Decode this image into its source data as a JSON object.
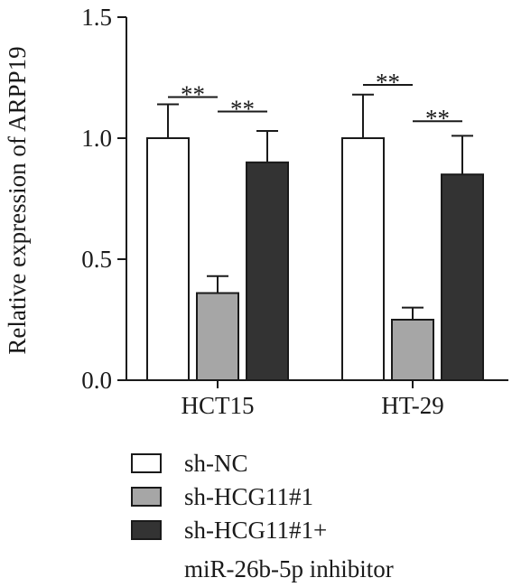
{
  "chart_data": {
    "type": "bar",
    "title": "",
    "xlabel": "",
    "ylabel": "Relative expression of ARPP19",
    "ylim": [
      0,
      1.5
    ],
    "yticks": [
      0,
      0.5,
      1.0,
      1.5
    ],
    "ytick_labels": [
      "0.0",
      "0.5",
      "1.0",
      "1.5"
    ],
    "categories": [
      "HCT15",
      "HT-29"
    ],
    "series": [
      {
        "name": "sh-NC",
        "values": [
          1.0,
          1.0
        ],
        "errors": [
          0.14,
          0.18
        ],
        "color": "#ffffff"
      },
      {
        "name": "sh-HCG11#1",
        "values": [
          0.36,
          0.25
        ],
        "errors": [
          0.07,
          0.05
        ],
        "color": "#a6a6a6"
      },
      {
        "name": "sh-HCG11#1+ miR-26b-5p inhibitor",
        "legend_lines": [
          "sh-HCG11#1+",
          "miR-26b-5p inhibitor"
        ],
        "values": [
          0.9,
          0.85
        ],
        "errors": [
          0.13,
          0.16
        ],
        "color": "#333333"
      }
    ],
    "significance": [
      {
        "category": "HCT15",
        "from_series": 0,
        "to_series": 1,
        "label": "**",
        "y": 1.17
      },
      {
        "category": "HCT15",
        "from_series": 1,
        "to_series": 2,
        "label": "**",
        "y": 1.11
      },
      {
        "category": "HT-29",
        "from_series": 0,
        "to_series": 1,
        "label": "**",
        "y": 1.22
      },
      {
        "category": "HT-29",
        "from_series": 1,
        "to_series": 2,
        "label": "**",
        "y": 1.07
      }
    ],
    "grid": false,
    "legend_position": "bottom-left"
  }
}
